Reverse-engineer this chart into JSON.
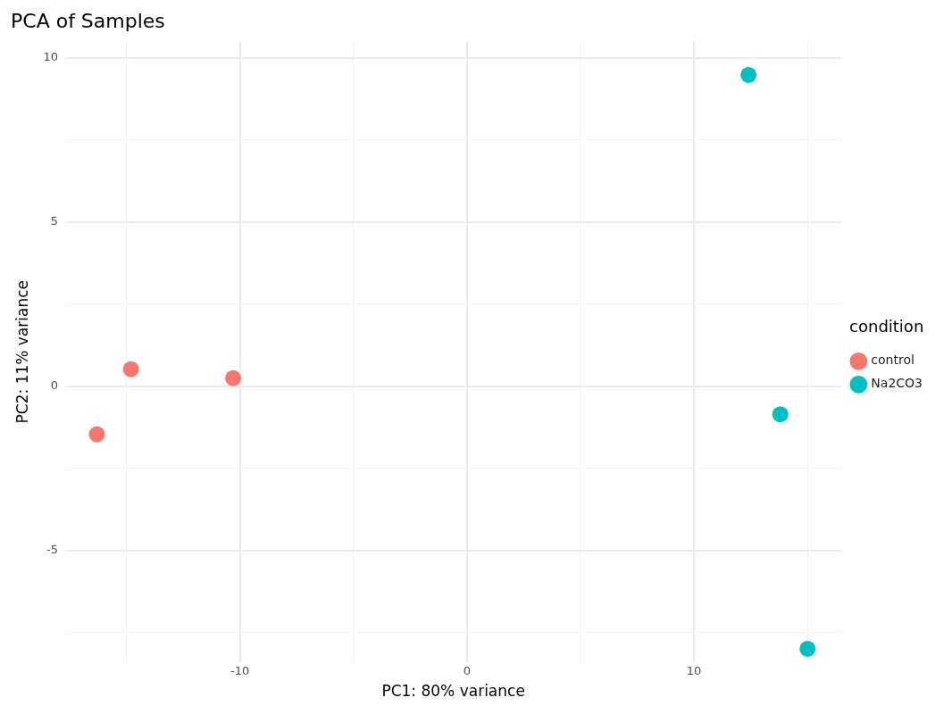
{
  "chart_data": {
    "type": "scatter",
    "title": "PCA of Samples",
    "xlabel": "PC1: 80% variance",
    "ylabel": "PC2: 11% variance",
    "legend_title": "condition",
    "series": [
      {
        "name": "control",
        "color": "#f8766d",
        "x": [
          -16.3,
          -14.8,
          -10.3
        ],
        "values": [
          -1.46,
          0.52,
          0.25
        ]
      },
      {
        "name": "Na2CO3",
        "color": "#00bfc4",
        "x": [
          12.4,
          13.8,
          15.0
        ],
        "values": [
          9.48,
          -0.85,
          -7.99
        ]
      }
    ],
    "xlim": [
      -17.7,
      16.5
    ],
    "ylim": [
      -8.4,
      10.5
    ],
    "xticks": [
      {
        "value": -15,
        "label": null
      },
      -10,
      {
        "value": -5,
        "label": null
      },
      0,
      {
        "value": 5,
        "label": null
      },
      10,
      {
        "value": 15,
        "label": null
      }
    ],
    "yticks": [
      {
        "value": -7.5,
        "label": null
      },
      -5,
      {
        "value": -2.5,
        "label": null
      },
      0,
      {
        "value": 2.5,
        "label": null
      },
      5,
      {
        "value": 7.5,
        "label": null
      },
      10
    ],
    "grid": true,
    "legend": "right",
    "marker": "circle"
  }
}
